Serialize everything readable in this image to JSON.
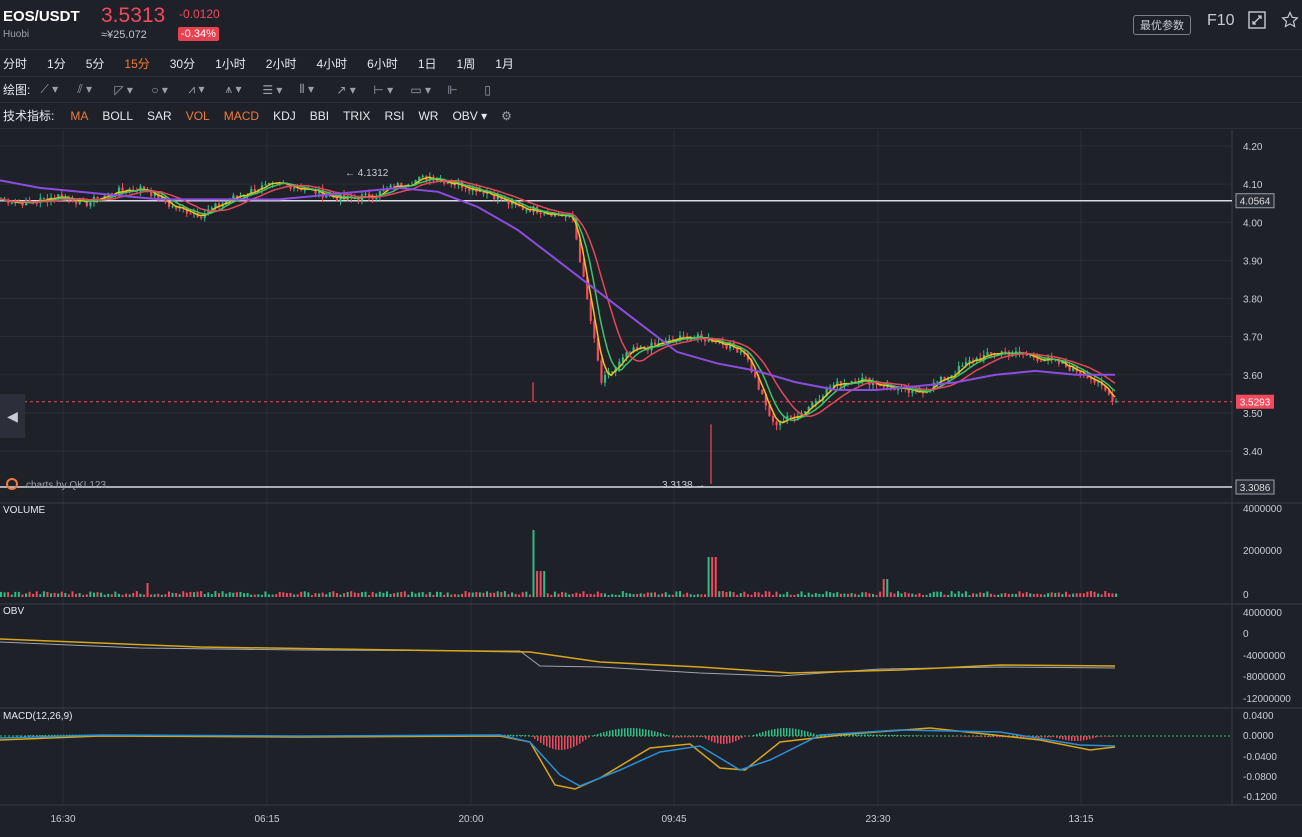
{
  "header": {
    "pair": "EOS/USDT",
    "exchange": "Huobi",
    "price": "3.5313",
    "cny_price": "≈¥25.072",
    "change": "-0.0120",
    "change_pct": "-0.34%",
    "params_button": "最优参数",
    "f10": "F10",
    "fullscreen_icon": "fullscreen-icon",
    "star_icon": "star-icon"
  },
  "timeframes": [
    "分时",
    "1分",
    "5分",
    "15分",
    "30分",
    "1小时",
    "2小时",
    "4小时",
    "6小时",
    "1日",
    "1周",
    "1月"
  ],
  "active_timeframe": "15分",
  "drawing": {
    "label": "绘图:",
    "tools": [
      "line-tool-icon",
      "ray-tool-icon",
      "triangle-tool-icon",
      "circle-tool-icon",
      "wave-tool-icon",
      "pattern-tool-icon",
      "fib-tool-icon",
      "gann-tool-icon",
      "arrow-tool-icon",
      "range-tool-icon",
      "text-tool-icon",
      "measure-tool-icon",
      "trash-icon"
    ]
  },
  "indicators": {
    "label": "技术指标:",
    "items": [
      {
        "name": "MA",
        "on": true
      },
      {
        "name": "BOLL",
        "on": false
      },
      {
        "name": "SAR",
        "on": false
      },
      {
        "name": "VOL",
        "on": true
      },
      {
        "name": "MACD",
        "on": true
      },
      {
        "name": "KDJ",
        "on": false
      },
      {
        "name": "BBI",
        "on": false
      },
      {
        "name": "TRIX",
        "on": false
      },
      {
        "name": "RSI",
        "on": false
      },
      {
        "name": "WR",
        "on": false
      },
      {
        "name": "OBV",
        "on": false
      }
    ],
    "settings_icon": "gear-icon"
  },
  "colors": {
    "bg": "#1f2129",
    "up": "#2ebd85",
    "down": "#f2495e",
    "ma_yellow": "#f0c419",
    "ma_green": "#3fc46c",
    "ma_red": "#e2485a",
    "ma_purple": "#8b4de0",
    "macd_blue": "#2b8fd6",
    "macd_gold": "#d8a51c"
  },
  "chart_data": {
    "type": "line",
    "price_axis_ticks": [
      "4.20",
      "4.10",
      "4.00",
      "3.90",
      "3.80",
      "3.70",
      "3.60",
      "3.50",
      "3.40"
    ],
    "time_axis_ticks": [
      "16:30",
      "06:15",
      "20:00",
      "09:45",
      "23:30",
      "13:15"
    ],
    "ylim": [
      3.3,
      4.22
    ],
    "high_marker": "4.1312",
    "low_marker": "3.3138",
    "line_4_0564": "4.0564",
    "line_3_3086": "3.3086",
    "current_price_tag": "3.5293",
    "watermark": "charts by QKL123",
    "close_series": [
      4.06,
      4.05,
      4.07,
      4.05,
      4.08,
      4.09,
      4.04,
      4.02,
      4.06,
      4.09,
      4.1,
      4.08,
      4.06,
      4.07,
      4.1,
      4.12,
      4.1,
      4.08,
      4.04,
      4.03,
      4.01,
      3.58,
      3.66,
      3.68,
      3.7,
      3.69,
      3.66,
      3.47,
      3.5,
      3.57,
      3.59,
      3.57,
      3.55,
      3.59,
      3.64,
      3.66,
      3.65,
      3.63,
      3.6,
      3.53
    ],
    "ma_purple": [
      4.11,
      4.09,
      4.08,
      4.07,
      4.06,
      4.06,
      4.06,
      4.06,
      4.07,
      4.08,
      4.09,
      4.08,
      4.04,
      3.98,
      3.9,
      3.82,
      3.74,
      3.66,
      3.63,
      3.61,
      3.58,
      3.56,
      3.56,
      3.57,
      3.58,
      3.6,
      3.61,
      3.6,
      3.6
    ],
    "volume": {
      "label": "VOLUME",
      "axis": [
        "4000000",
        "2000000",
        "0"
      ]
    },
    "obv": {
      "label": "OBV",
      "axis": [
        "4000000",
        "0",
        "-4000000",
        "-8000000",
        "-12000000"
      ]
    },
    "macd": {
      "label": "MACD(12,26,9)",
      "axis": [
        "0.0400",
        "0.0000",
        "-0.0400",
        "-0.0800",
        "-0.1200"
      ]
    }
  }
}
